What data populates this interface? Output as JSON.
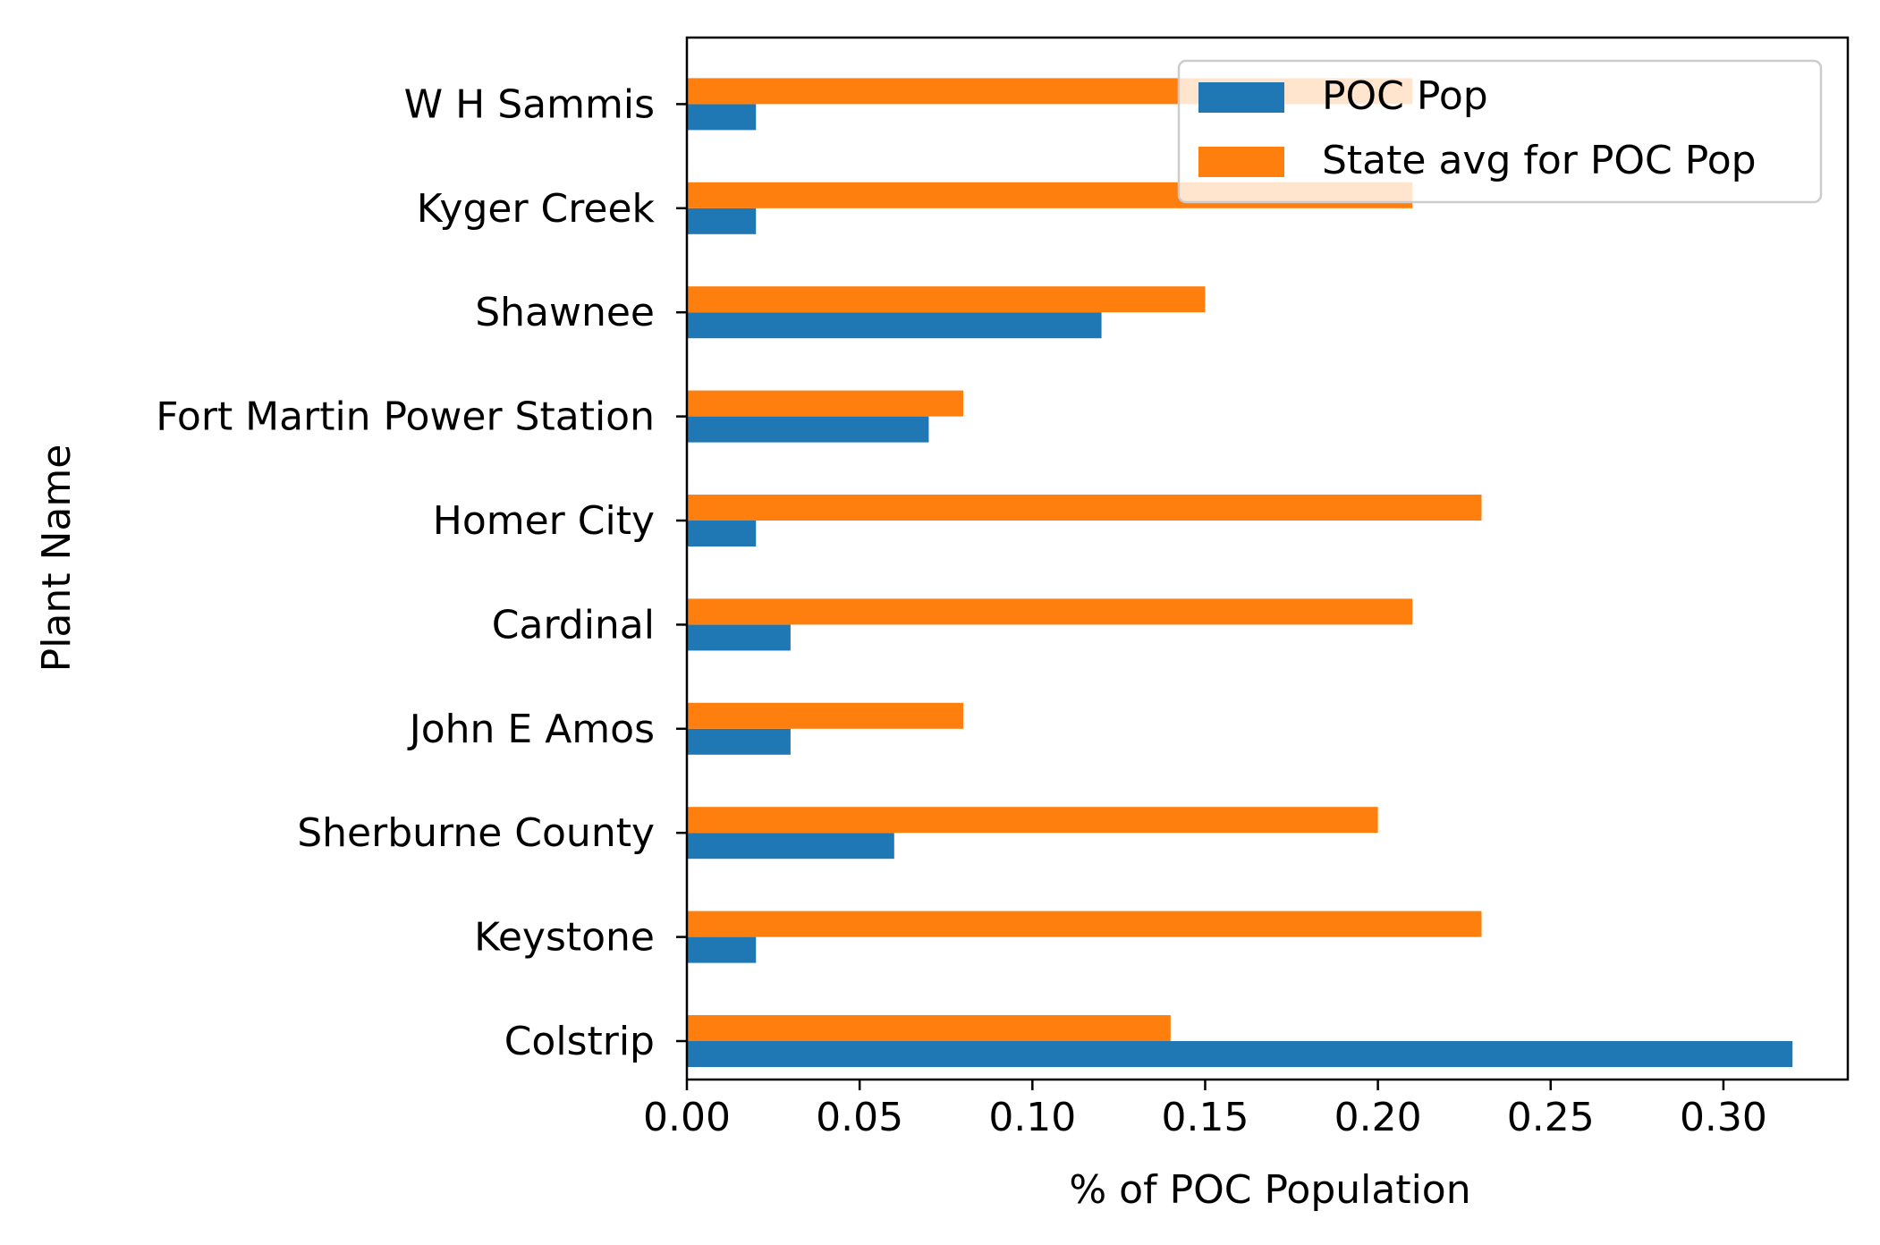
{
  "chart_data": {
    "type": "bar",
    "orientation": "horizontal",
    "title": "",
    "xlabel": "% of POC Population",
    "ylabel": "Plant Name",
    "xlim": [
      0,
      0.336
    ],
    "xticks": [
      0.0,
      0.05,
      0.1,
      0.15,
      0.2,
      0.25,
      0.3
    ],
    "xtick_labels": [
      "0.00",
      "0.05",
      "0.10",
      "0.15",
      "0.20",
      "0.25",
      "0.30"
    ],
    "categories": [
      "Colstrip",
      "Keystone",
      "Sherburne County",
      "John E Amos",
      "Cardinal",
      "Homer City",
      "Fort Martin Power Station",
      "Shawnee",
      "Kyger Creek",
      "W H Sammis"
    ],
    "series": [
      {
        "name": "POC Pop",
        "color": "#1f77b4",
        "values": [
          0.32,
          0.02,
          0.06,
          0.03,
          0.03,
          0.02,
          0.07,
          0.12,
          0.02,
          0.02
        ]
      },
      {
        "name": "State avg for POC Pop",
        "color": "#ff7f0e",
        "values": [
          0.14,
          0.23,
          0.2,
          0.08,
          0.21,
          0.23,
          0.08,
          0.15,
          0.21,
          0.21
        ]
      }
    ],
    "grid": false,
    "legend": "top-right"
  }
}
